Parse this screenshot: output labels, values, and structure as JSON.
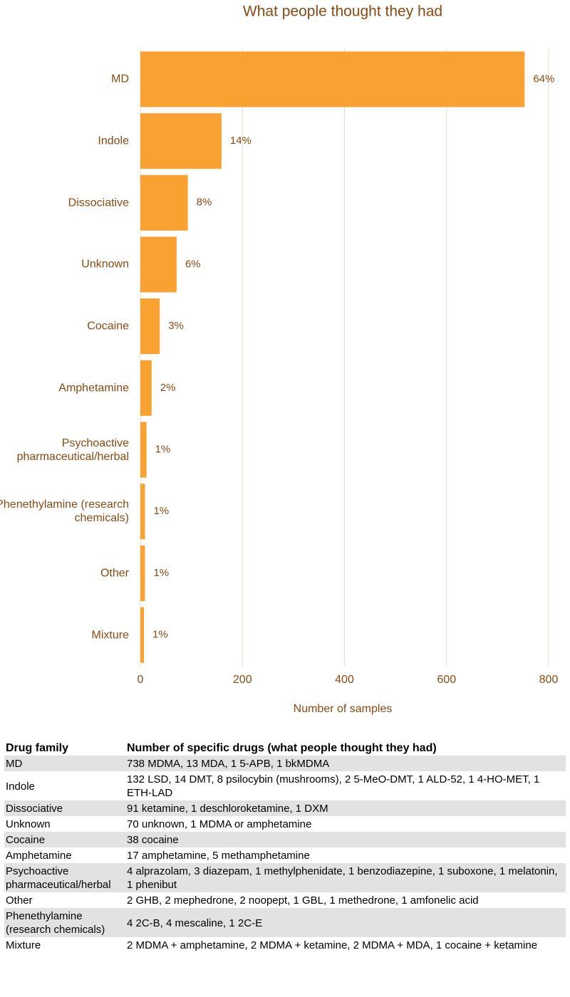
{
  "chart_data": {
    "type": "bar",
    "orientation": "horizontal",
    "title": "What people thought they had",
    "categories": [
      "MD",
      "Indole",
      "Dissociative",
      "Unknown",
      "Cocaine",
      "Amphetamine",
      "Psychoactive pharmaceutical/herbal",
      "Phenethylamine (research chemicals)",
      "Other",
      "Mixture"
    ],
    "values": [
      753,
      159,
      93,
      71,
      38,
      22,
      12,
      9,
      9,
      7
    ],
    "shares": [
      64,
      14,
      8,
      6,
      3,
      2,
      1,
      1,
      1,
      1
    ],
    "share_labels": [
      "64%",
      "14%",
      "8%",
      "6%",
      "3%",
      "2%",
      "1%",
      "1%",
      "1%",
      "1%"
    ],
    "color": "#f9a131",
    "xlabel": "Number of samples",
    "xlim": [
      0,
      800
    ],
    "xticks": [
      0,
      200,
      400,
      600,
      800
    ],
    "grid": true
  },
  "table": {
    "header": [
      "Drug family",
      "Number of specific drugs (what people thought they had)"
    ],
    "rows": [
      [
        "MD",
        "738 MDMA, 13 MDA, 1 5-APB, 1 bkMDMA"
      ],
      [
        "Indole",
        "132 LSD, 14 DMT, 8 psilocybin (mushrooms), 2 5-MeO-DMT, 1 ALD-52, 1 4-HO-MET, 1 ETH-LAD"
      ],
      [
        "Dissociative",
        "91 ketamine, 1 deschloroketamine, 1 DXM"
      ],
      [
        "Unknown",
        "70 unknown, 1 MDMA or amphetamine"
      ],
      [
        "Cocaine",
        "38 cocaine"
      ],
      [
        "Amphetamine",
        "17 amphetamine, 5 methamphetamine"
      ],
      [
        "Psychoactive pharmaceutical/herbal",
        "4 alprazolam, 3 diazepam, 1 methylphenidate, 1 benzodiazepine, 1 suboxone, 1 melatonin, 1 phenibut"
      ],
      [
        "Other",
        "2 GHB, 2 mephedrone, 2 noopept, 1 GBL, 1 methedrone, 1 amfonelic acid"
      ],
      [
        "Phenethylamine (research chemicals)",
        "4 2C-B, 4 mescaline, 1 2C-E"
      ],
      [
        "Mixture",
        "2 MDMA + amphetamine, 2 MDMA + ketamine, 2 MDMA + MDA, 1 cocaine + ketamine"
      ]
    ]
  }
}
